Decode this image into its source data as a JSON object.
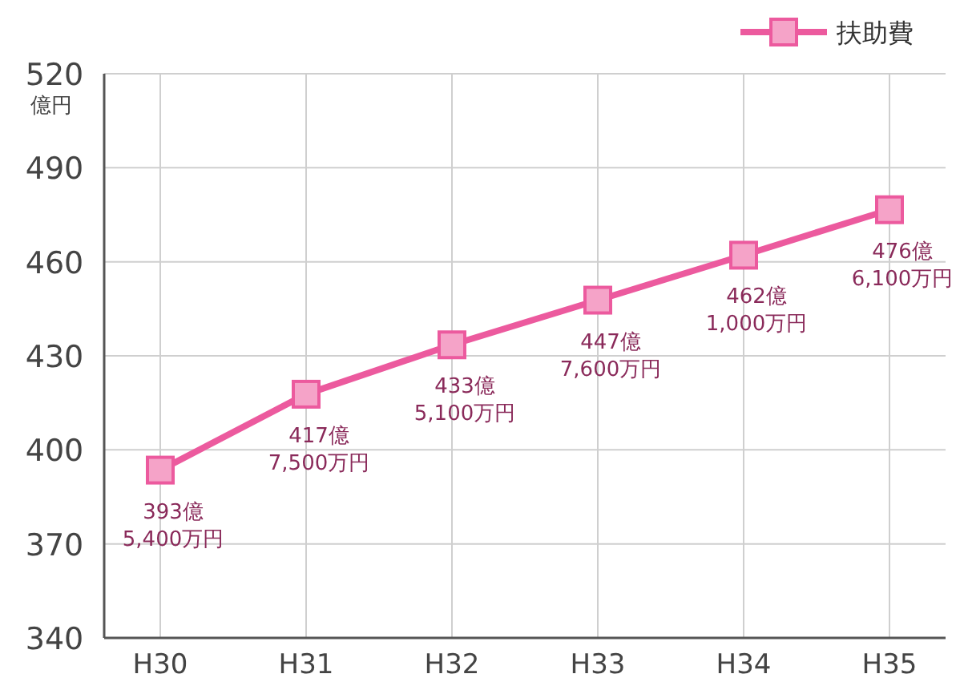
{
  "chart_data": {
    "type": "line",
    "ylabel": "億円",
    "categories": [
      "H30",
      "H31",
      "H32",
      "H33",
      "H34",
      "H35"
    ],
    "series": [
      {
        "name": "扶助費",
        "color": "#ec5a9e",
        "values": [
          393.54,
          417.75,
          433.51,
          447.76,
          462.1,
          476.61
        ]
      }
    ],
    "annotations": [
      {
        "text": "393億\n5,400万円",
        "x": "H30",
        "y": 393.54
      },
      {
        "text": "417億\n7,500万円",
        "x": "H31",
        "y": 417.75
      },
      {
        "text": "433億\n5,100万円",
        "x": "H32",
        "y": 433.51
      },
      {
        "text": "447億\n7,600万円",
        "x": "H33",
        "y": 447.76
      },
      {
        "text": "462億\n1,000万円",
        "x": "H34",
        "y": 462.1
      },
      {
        "text": "476億\n6,100万円",
        "x": "H35",
        "y": 476.61
      }
    ],
    "ylim": [
      340,
      520
    ],
    "yticks": [
      340,
      370,
      400,
      430,
      460,
      490,
      520
    ],
    "grid": true,
    "legend": "top right",
    "marker": "square",
    "line_style": "solid"
  }
}
